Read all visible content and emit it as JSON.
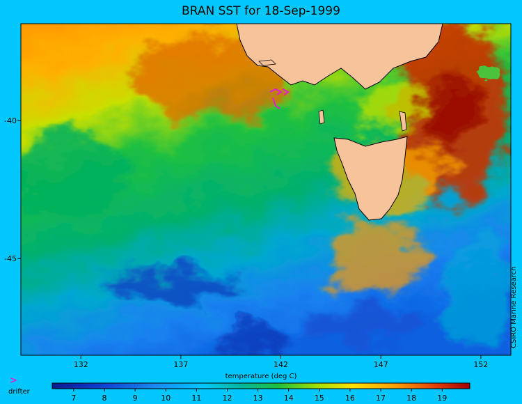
{
  "title": "BRAN SST for 18-Sep-1999",
  "xlabel": "temperature (deg C)",
  "credit": "CSIRO Marine Research",
  "legend": {
    "drifter_symbol": ">",
    "drifter_label": "drifter"
  },
  "colors": {
    "background": "#00c8ff",
    "land": "#f7c39b",
    "drifter": "#e020d0"
  },
  "map": {
    "lon_range": [
      129,
      153.5
    ],
    "lat_range": [
      -48.5,
      -36.5
    ],
    "lon_ticks": [
      132,
      137,
      142,
      147,
      152
    ],
    "lat_ticks": [
      -40,
      -45
    ]
  },
  "colorbar": {
    "min": 6.3,
    "max": 19.9,
    "tick_labels": [
      "7",
      "8",
      "9",
      "10",
      "11",
      "12",
      "13",
      "14",
      "15",
      "16",
      "17",
      "18",
      "19"
    ]
  }
}
